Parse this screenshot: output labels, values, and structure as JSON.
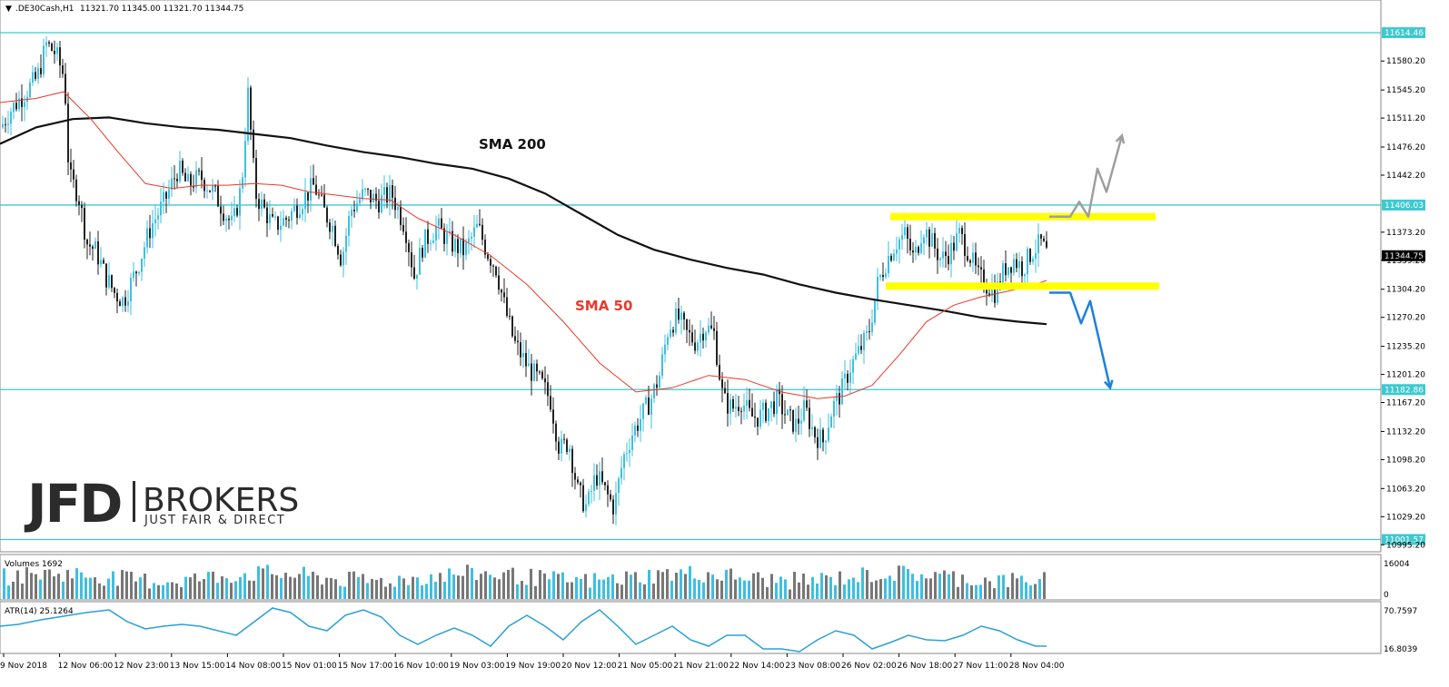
{
  "header": {
    "symbol": ".DE30Cash,H1",
    "ohlc": "11321.70 11345.00 11321.70 11344.75"
  },
  "colors": {
    "candle_up": "#3fbfe0",
    "candle_down": "#222222",
    "level_line": "#3ec9cf",
    "sma200": "#111111",
    "sma50": "#e63a2c",
    "zone": "#ffff00",
    "arrow_up": "#9e9e9e",
    "arrow_down": "#1e7fe0",
    "volume_up": "#3fbfe0",
    "volume_down": "#777777",
    "atr": "#2ba0d6"
  },
  "logo": {
    "brand": "JFD",
    "name": "BROKERS",
    "tagline": "JUST FAIR & DIRECT"
  },
  "annotations": {
    "sma200_label": "SMA 200",
    "sma50_label": "SMA 50"
  },
  "chart_data": {
    "type": "candlestick",
    "symbol": ".DE30Cash",
    "timeframe": "H1",
    "ylim": [
      10995.5,
      11648.5
    ],
    "y_ticks": [
      "11580.20",
      "11545.20",
      "11511.20",
      "11476.20",
      "11442.20",
      "11373.20",
      "11339.20",
      "11304.20",
      "11270.20",
      "11235.20",
      "11201.20",
      "11167.20",
      "11132.20",
      "11098.20",
      "11063.20",
      "11029.20",
      "10995.20"
    ],
    "horizontal_levels": [
      {
        "value": 11614.46,
        "label": "11614.46"
      },
      {
        "value": 11406.03,
        "label": "11406.03"
      },
      {
        "value": 11182.86,
        "label": "11182.86"
      },
      {
        "value": 11001.57,
        "label": "11001.57"
      }
    ],
    "current_price": {
      "value": 11344.75,
      "label": "11344.75"
    },
    "x_labels": [
      "9 Nov 2018",
      "12 Nov 06:00",
      "12 Nov 23:00",
      "13 Nov 15:00",
      "14 Nov 08:00",
      "15 Nov 01:00",
      "15 Nov 17:00",
      "16 Nov 10:00",
      "19 Nov 03:00",
      "19 Nov 19:00",
      "20 Nov 12:00",
      "21 Nov 05:00",
      "21 Nov 21:00",
      "22 Nov 14:00",
      "23 Nov 08:00",
      "26 Nov 02:00",
      "26 Nov 18:00",
      "27 Nov 11:00",
      "28 Nov 04:00"
    ],
    "price_path": [
      [
        0,
        11500
      ],
      [
        10,
        11520
      ],
      [
        25,
        11540
      ],
      [
        40,
        11560
      ],
      [
        50,
        11600
      ],
      [
        60,
        11590
      ],
      [
        70,
        11560
      ],
      [
        75,
        11440
      ],
      [
        85,
        11420
      ],
      [
        95,
        11360
      ],
      [
        105,
        11350
      ],
      [
        115,
        11320
      ],
      [
        125,
        11300
      ],
      [
        135,
        11290
      ],
      [
        150,
        11330
      ],
      [
        165,
        11380
      ],
      [
        180,
        11410
      ],
      [
        195,
        11450
      ],
      [
        205,
        11430
      ],
      [
        220,
        11440
      ],
      [
        235,
        11420
      ],
      [
        245,
        11400
      ],
      [
        255,
        11380
      ],
      [
        265,
        11430
      ],
      [
        272,
        11540
      ],
      [
        280,
        11420
      ],
      [
        290,
        11400
      ],
      [
        300,
        11380
      ],
      [
        315,
        11390
      ],
      [
        330,
        11410
      ],
      [
        345,
        11430
      ],
      [
        355,
        11400
      ],
      [
        365,
        11380
      ],
      [
        375,
        11340
      ],
      [
        385,
        11400
      ],
      [
        400,
        11420
      ],
      [
        415,
        11410
      ],
      [
        430,
        11420
      ],
      [
        445,
        11380
      ],
      [
        455,
        11320
      ],
      [
        465,
        11360
      ],
      [
        480,
        11380
      ],
      [
        495,
        11360
      ],
      [
        510,
        11350
      ],
      [
        525,
        11380
      ],
      [
        535,
        11350
      ],
      [
        545,
        11330
      ],
      [
        555,
        11280
      ],
      [
        565,
        11240
      ],
      [
        580,
        11210
      ],
      [
        595,
        11190
      ],
      [
        605,
        11170
      ],
      [
        615,
        11110
      ],
      [
        625,
        11120
      ],
      [
        635,
        11060
      ],
      [
        645,
        11040
      ],
      [
        655,
        11080
      ],
      [
        665,
        11060
      ],
      [
        675,
        11040
      ],
      [
        685,
        11100
      ],
      [
        695,
        11130
      ],
      [
        705,
        11150
      ],
      [
        715,
        11170
      ],
      [
        725,
        11200
      ],
      [
        735,
        11260
      ],
      [
        745,
        11270
      ],
      [
        755,
        11250
      ],
      [
        765,
        11240
      ],
      [
        775,
        11260
      ],
      [
        785,
        11250
      ],
      [
        795,
        11170
      ],
      [
        805,
        11160
      ],
      [
        815,
        11170
      ],
      [
        825,
        11150
      ],
      [
        835,
        11150
      ],
      [
        845,
        11160
      ],
      [
        855,
        11170
      ],
      [
        865,
        11150
      ],
      [
        875,
        11140
      ],
      [
        885,
        11160
      ],
      [
        895,
        11130
      ],
      [
        905,
        11120
      ],
      [
        915,
        11160
      ],
      [
        925,
        11180
      ],
      [
        935,
        11210
      ],
      [
        945,
        11230
      ],
      [
        955,
        11250
      ],
      [
        965,
        11310
      ],
      [
        975,
        11340
      ],
      [
        985,
        11360
      ],
      [
        995,
        11370
      ],
      [
        1005,
        11340
      ],
      [
        1015,
        11380
      ],
      [
        1025,
        11360
      ],
      [
        1035,
        11340
      ],
      [
        1045,
        11350
      ],
      [
        1055,
        11370
      ],
      [
        1065,
        11350
      ],
      [
        1075,
        11320
      ],
      [
        1085,
        11310
      ],
      [
        1095,
        11300
      ],
      [
        1105,
        11330
      ],
      [
        1115,
        11340
      ],
      [
        1125,
        11330
      ],
      [
        1135,
        11350
      ],
      [
        1145,
        11360
      ],
      [
        1152,
        11345
      ]
    ],
    "sma200_path": [
      [
        0,
        11480
      ],
      [
        40,
        11500
      ],
      [
        80,
        11510
      ],
      [
        120,
        11512
      ],
      [
        160,
        11505
      ],
      [
        200,
        11500
      ],
      [
        240,
        11497
      ],
      [
        280,
        11492
      ],
      [
        320,
        11487
      ],
      [
        360,
        11478
      ],
      [
        400,
        11470
      ],
      [
        440,
        11464
      ],
      [
        480,
        11456
      ],
      [
        520,
        11450
      ],
      [
        560,
        11438
      ],
      [
        600,
        11420
      ],
      [
        640,
        11395
      ],
      [
        680,
        11370
      ],
      [
        720,
        11352
      ],
      [
        760,
        11340
      ],
      [
        800,
        11330
      ],
      [
        840,
        11322
      ],
      [
        880,
        11310
      ],
      [
        920,
        11300
      ],
      [
        960,
        11292
      ],
      [
        1000,
        11285
      ],
      [
        1040,
        11278
      ],
      [
        1080,
        11270
      ],
      [
        1120,
        11265
      ],
      [
        1152,
        11262
      ]
    ],
    "sma50_path": [
      [
        0,
        11530
      ],
      [
        40,
        11535
      ],
      [
        70,
        11543
      ],
      [
        100,
        11510
      ],
      [
        130,
        11470
      ],
      [
        160,
        11432
      ],
      [
        190,
        11426
      ],
      [
        220,
        11430
      ],
      [
        250,
        11430
      ],
      [
        280,
        11432
      ],
      [
        310,
        11430
      ],
      [
        340,
        11422
      ],
      [
        370,
        11418
      ],
      [
        400,
        11414
      ],
      [
        430,
        11412
      ],
      [
        460,
        11390
      ],
      [
        500,
        11370
      ],
      [
        540,
        11345
      ],
      [
        580,
        11310
      ],
      [
        620,
        11265
      ],
      [
        660,
        11215
      ],
      [
        700,
        11180
      ],
      [
        740,
        11185
      ],
      [
        780,
        11200
      ],
      [
        820,
        11195
      ],
      [
        860,
        11180
      ],
      [
        900,
        11172
      ],
      [
        930,
        11175
      ],
      [
        960,
        11188
      ],
      [
        990,
        11225
      ],
      [
        1020,
        11265
      ],
      [
        1050,
        11285
      ],
      [
        1080,
        11295
      ],
      [
        1110,
        11302
      ],
      [
        1140,
        11310
      ],
      [
        1152,
        11315
      ]
    ],
    "resistance_zone": {
      "x0": 980,
      "x1": 1272,
      "y": 11392
    },
    "support_zone": {
      "x0": 975,
      "x1": 1276,
      "y": 11308
    },
    "scenario_up": [
      [
        1155,
        11392
      ],
      [
        1178,
        11392
      ],
      [
        1188,
        11410
      ],
      [
        1198,
        11392
      ],
      [
        1208,
        11450
      ],
      [
        1218,
        11422
      ],
      [
        1235,
        11490
      ]
    ],
    "scenario_down": [
      [
        1155,
        11300
      ],
      [
        1178,
        11300
      ],
      [
        1190,
        11263
      ],
      [
        1200,
        11290
      ],
      [
        1222,
        11185
      ]
    ],
    "volumes": {
      "label": "Volumes 1692",
      "max_label": "16004",
      "zero_label": "0"
    },
    "atr": {
      "label": "ATR(14) 25.1264",
      "max_label": "70.7597",
      "min_label": "16.8039",
      "path": [
        [
          0,
          690
        ],
        [
          20,
          688
        ],
        [
          45,
          683
        ],
        [
          70,
          679
        ],
        [
          95,
          675
        ],
        [
          120,
          672
        ],
        [
          140,
          685
        ],
        [
          160,
          693
        ],
        [
          180,
          690
        ],
        [
          200,
          688
        ],
        [
          220,
          690
        ],
        [
          240,
          695
        ],
        [
          260,
          700
        ],
        [
          280,
          685
        ],
        [
          300,
          670
        ],
        [
          320,
          675
        ],
        [
          340,
          690
        ],
        [
          360,
          695
        ],
        [
          380,
          678
        ],
        [
          400,
          672
        ],
        [
          420,
          680
        ],
        [
          440,
          700
        ],
        [
          460,
          710
        ],
        [
          480,
          700
        ],
        [
          500,
          692
        ],
        [
          520,
          700
        ],
        [
          540,
          712
        ],
        [
          560,
          690
        ],
        [
          580,
          678
        ],
        [
          600,
          690
        ],
        [
          620,
          705
        ],
        [
          640,
          685
        ],
        [
          660,
          672
        ],
        [
          680,
          690
        ],
        [
          700,
          710
        ],
        [
          720,
          700
        ],
        [
          740,
          690
        ],
        [
          760,
          705
        ],
        [
          780,
          712
        ],
        [
          800,
          700
        ],
        [
          820,
          700
        ],
        [
          840,
          715
        ],
        [
          860,
          715
        ],
        [
          880,
          718
        ],
        [
          900,
          705
        ],
        [
          920,
          695
        ],
        [
          940,
          700
        ],
        [
          960,
          715
        ],
        [
          980,
          708
        ],
        [
          1000,
          700
        ],
        [
          1020,
          705
        ],
        [
          1040,
          706
        ],
        [
          1060,
          700
        ],
        [
          1080,
          690
        ],
        [
          1100,
          695
        ],
        [
          1120,
          705
        ],
        [
          1140,
          712
        ],
        [
          1152,
          712
        ]
      ]
    }
  }
}
